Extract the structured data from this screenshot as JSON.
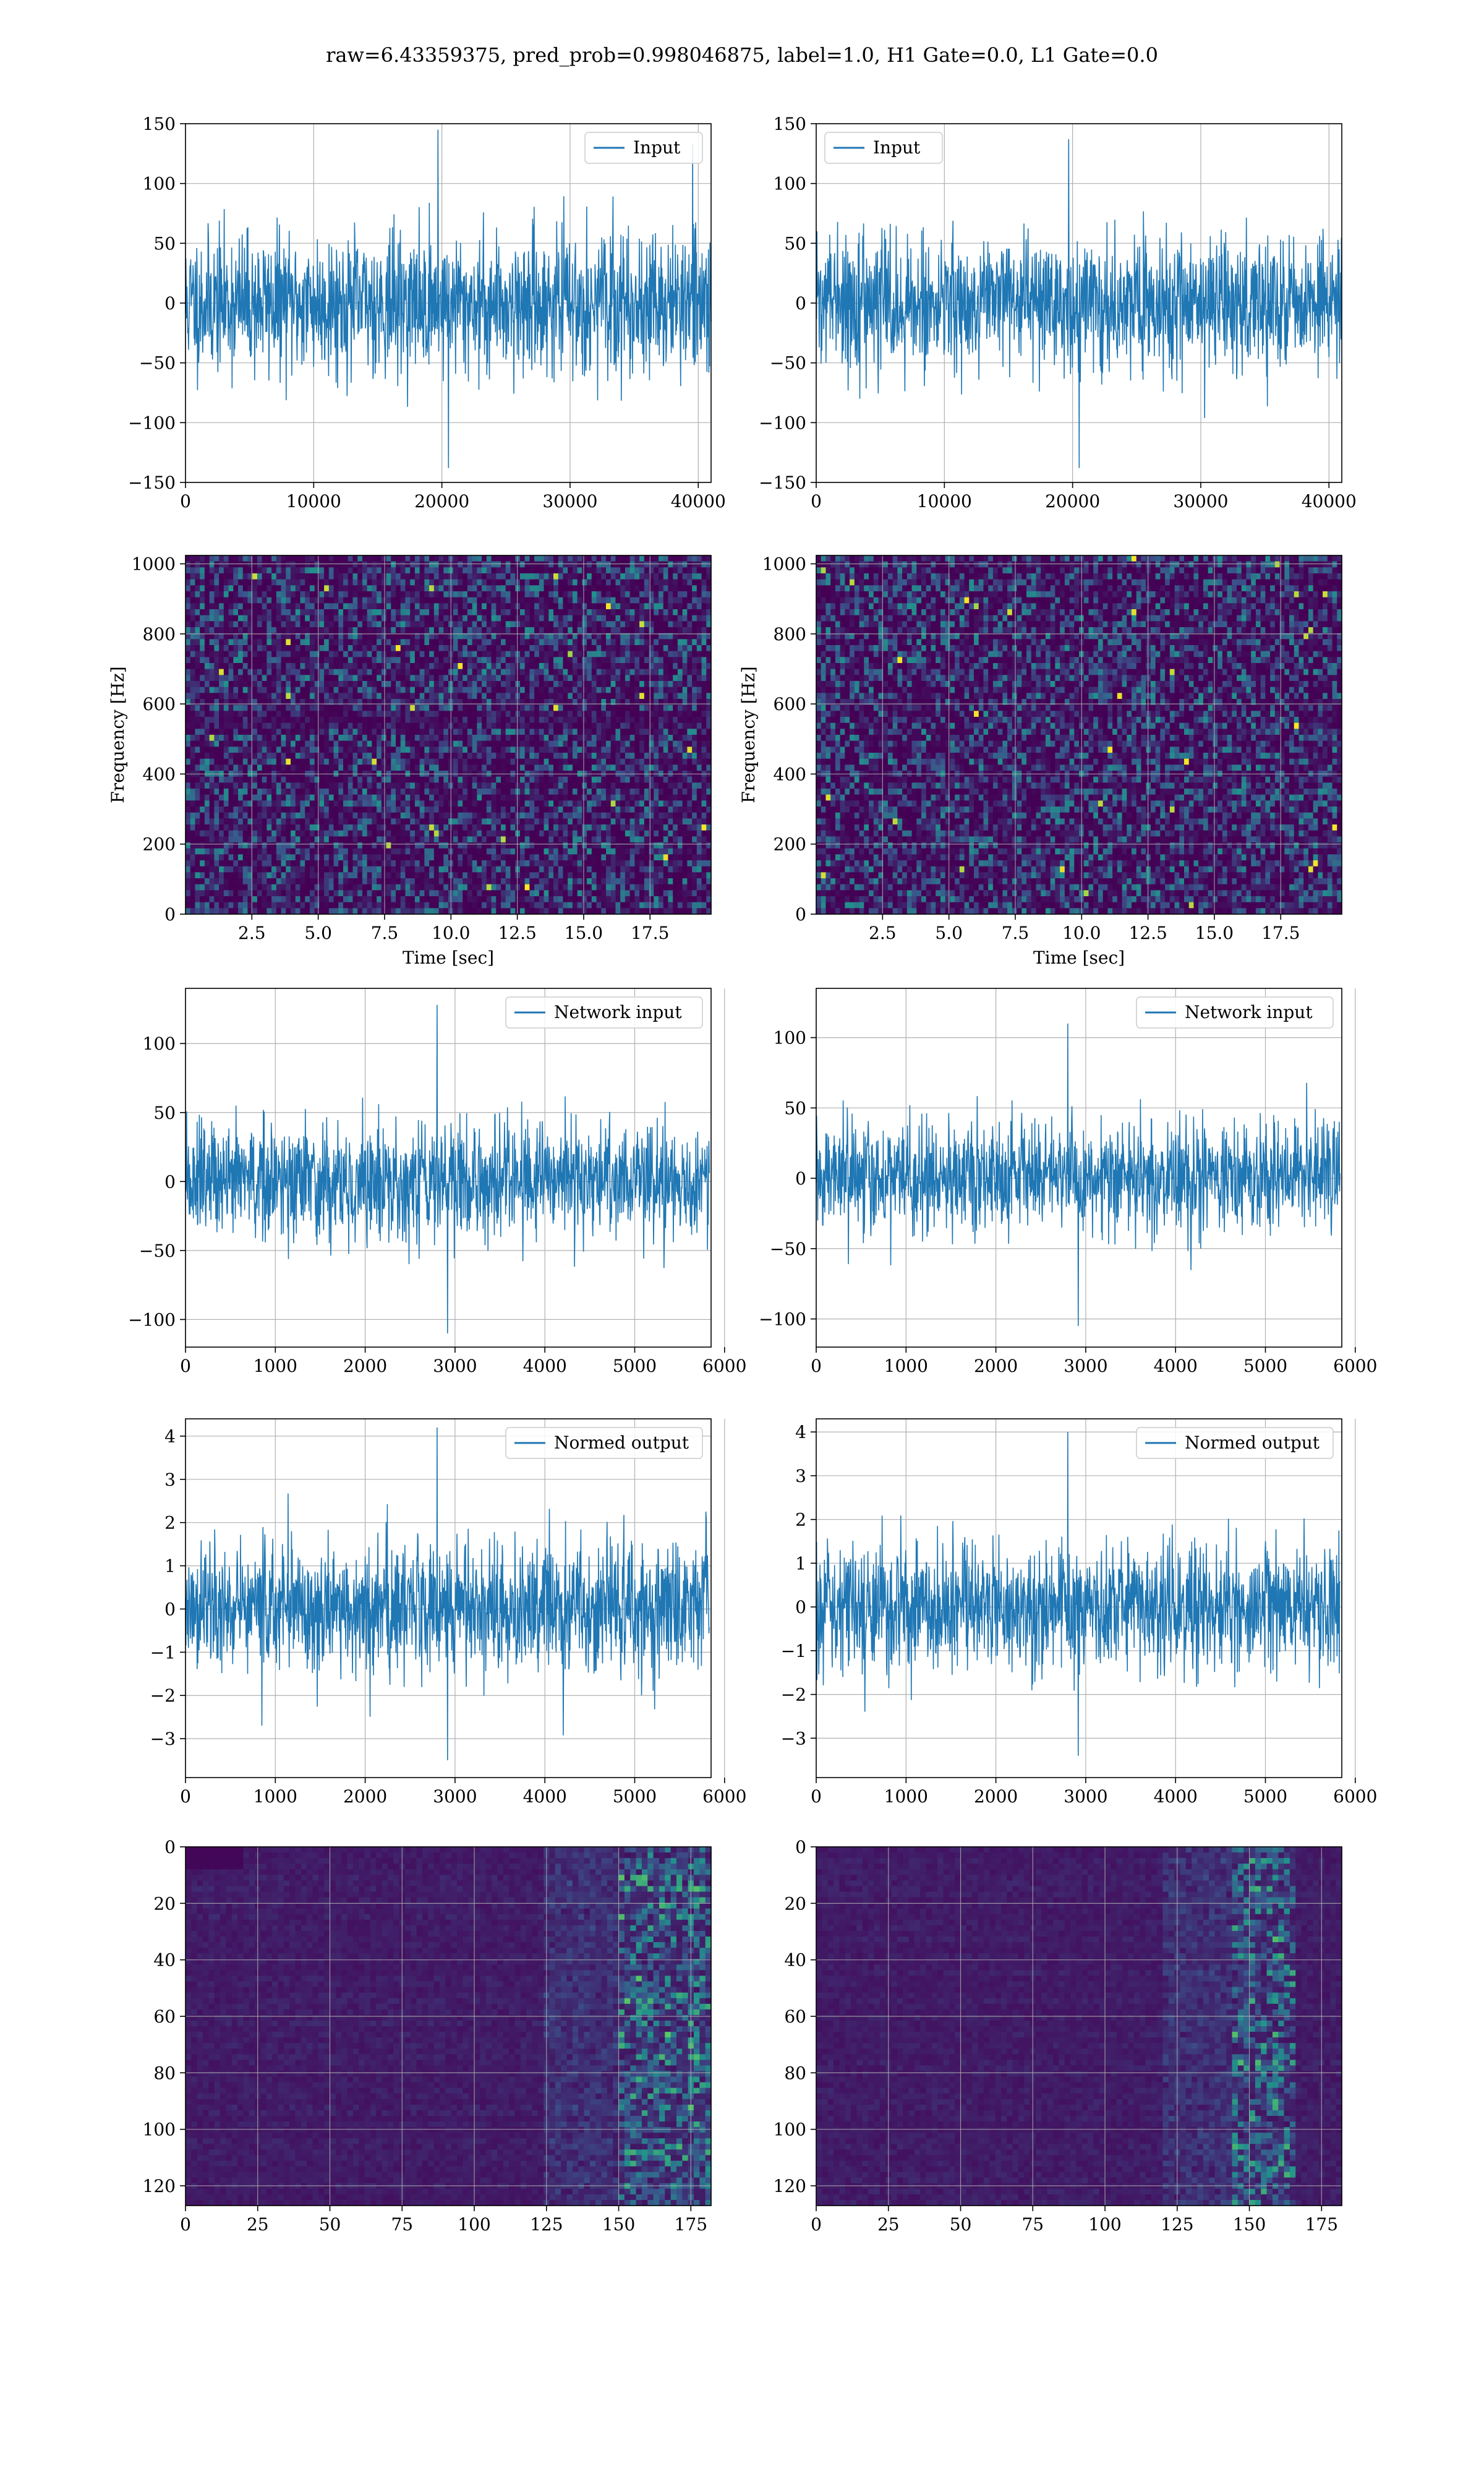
{
  "figure": {
    "suptitle": "raw=6.43359375, pred_prob=0.998046875, label=1.0, H1 Gate=0.0, L1 Gate=0.0"
  },
  "colors": {
    "line": "#1f77b4",
    "grid": "#b0b0b0",
    "viridis_low": "#440154",
    "viridis_mid": "#21918c",
    "viridis_high": "#fde725"
  },
  "chart_data": [
    {
      "id": "h1-input",
      "type": "line",
      "name": "Input",
      "xlim": [
        0,
        41000
      ],
      "ylim": [
        -150,
        150
      ],
      "xticks": [
        0,
        10000,
        20000,
        30000,
        40000
      ],
      "yticks": [
        150,
        100,
        50,
        0,
        -50,
        -100,
        -150
      ],
      "legend": "top-right",
      "grid": true,
      "envelope": {
        "x": [
          0,
          41000
        ],
        "typical_range": [
          -75,
          75
        ],
        "max": 145,
        "min": -138
      }
    },
    {
      "id": "l1-input",
      "type": "line",
      "name": "Input",
      "xlim": [
        0,
        41000
      ],
      "ylim": [
        -150,
        150
      ],
      "xticks": [
        0,
        10000,
        20000,
        30000,
        40000
      ],
      "yticks": [
        150,
        100,
        50,
        0,
        -50,
        -100,
        -150
      ],
      "legend": "top-left",
      "grid": true,
      "envelope": {
        "x": [
          0,
          41000
        ],
        "typical_range": [
          -70,
          70
        ],
        "max": 137,
        "min": -138
      }
    },
    {
      "id": "h1-spectrogram",
      "type": "heatmap",
      "xlabel": "Time [sec]",
      "ylabel": "Frequency [Hz]",
      "xlim": [
        0,
        19.8
      ],
      "ylim": [
        0,
        1024
      ],
      "xticks": [
        "2.5",
        "5.0",
        "7.5",
        "10.0",
        "12.5",
        "15.0",
        "17.5"
      ],
      "yticks": [
        "0",
        "200",
        "400",
        "600",
        "800",
        "1000"
      ],
      "colormap": "viridis",
      "grid": true
    },
    {
      "id": "l1-spectrogram",
      "type": "heatmap",
      "xlabel": "Time [sec]",
      "ylabel": "Frequency [Hz]",
      "xlim": [
        0,
        19.8
      ],
      "ylim": [
        0,
        1024
      ],
      "xticks": [
        "2.5",
        "5.0",
        "7.5",
        "10.0",
        "12.5",
        "15.0",
        "17.5"
      ],
      "yticks": [
        "0",
        "200",
        "400",
        "600",
        "800",
        "1000"
      ],
      "colormap": "viridis",
      "grid": true
    },
    {
      "id": "h1-network-input",
      "type": "line",
      "name": "Network input",
      "xlim": [
        0,
        5850
      ],
      "ylim": [
        -120,
        140
      ],
      "xticks": [
        0,
        1000,
        2000,
        3000,
        4000,
        5000,
        6000
      ],
      "yticks": [
        100,
        50,
        0,
        -50,
        -100
      ],
      "legend": "top-right",
      "grid": true,
      "envelope": {
        "x": [
          0,
          5830
        ],
        "typical_range": [
          -55,
          55
        ],
        "max": 128,
        "min": -110
      }
    },
    {
      "id": "l1-network-input",
      "type": "line",
      "name": "Network input",
      "xlim": [
        0,
        5850
      ],
      "ylim": [
        -120,
        135
      ],
      "xticks": [
        0,
        1000,
        2000,
        3000,
        4000,
        5000,
        6000
      ],
      "yticks": [
        100,
        50,
        0,
        -50,
        -100
      ],
      "legend": "top-right",
      "grid": true,
      "envelope": {
        "x": [
          0,
          5830
        ],
        "typical_range": [
          -50,
          50
        ],
        "max": 110,
        "min": -105
      }
    },
    {
      "id": "h1-normed-output",
      "type": "line",
      "name": "Normed output",
      "xlim": [
        0,
        5850
      ],
      "ylim": [
        -3.9,
        4.4
      ],
      "xticks": [
        0,
        1000,
        2000,
        3000,
        4000,
        5000,
        6000
      ],
      "yticks": [
        4,
        3,
        2,
        1,
        0,
        -1,
        -2,
        -3
      ],
      "legend": "top-right",
      "grid": true,
      "envelope": {
        "x": [
          0,
          5830
        ],
        "typical_range": [
          -2,
          2
        ],
        "max": 4.2,
        "min": -3.5
      }
    },
    {
      "id": "l1-normed-output",
      "type": "line",
      "name": "Normed output",
      "xlim": [
        0,
        5850
      ],
      "ylim": [
        -3.9,
        4.3
      ],
      "xticks": [
        0,
        1000,
        2000,
        3000,
        4000,
        5000,
        6000
      ],
      "yticks": [
        4,
        3,
        2,
        1,
        0,
        -1,
        -2,
        -3
      ],
      "legend": "top-right",
      "grid": true,
      "envelope": {
        "x": [
          0,
          5830
        ],
        "typical_range": [
          -1.9,
          1.9
        ],
        "max": 4.0,
        "min": -3.4
      }
    },
    {
      "id": "h1-feature-map",
      "type": "heatmap",
      "xlim": [
        0,
        182
      ],
      "ylim": [
        127,
        0
      ],
      "xticks": [
        "0",
        "25",
        "50",
        "75",
        "100",
        "125",
        "150",
        "175"
      ],
      "yticks": [
        "0",
        "20",
        "40",
        "60",
        "80",
        "100",
        "120"
      ],
      "colormap": "viridis",
      "grid": true,
      "bright_region_x": [
        150,
        182
      ]
    },
    {
      "id": "l1-feature-map",
      "type": "heatmap",
      "xlim": [
        0,
        182
      ],
      "ylim": [
        127,
        0
      ],
      "xticks": [
        "0",
        "25",
        "50",
        "75",
        "100",
        "125",
        "150",
        "175"
      ],
      "yticks": [
        "0",
        "20",
        "40",
        "60",
        "80",
        "100",
        "120"
      ],
      "colormap": "viridis",
      "grid": true,
      "bright_region_x": [
        145,
        165
      ]
    }
  ]
}
